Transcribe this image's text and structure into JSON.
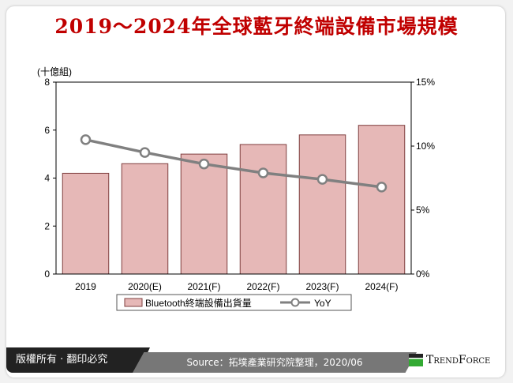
{
  "title": "2019～2024年全球藍牙終端設備市場規模",
  "footer": {
    "copyright": "版權所有 · 翻印必究",
    "source": "Source：拓墣產業研究院整理，2020/06",
    "brand": "TrendForce"
  },
  "colors": {
    "bar": "#e6b8b7",
    "bar_border": "#7f3f3f",
    "line": "#808080",
    "title": "#c00000"
  },
  "chart_data": {
    "type": "bar+line",
    "categories": [
      "2019",
      "2020(E)",
      "2021(F)",
      "2022(F)",
      "2023(F)",
      "2024(F)"
    ],
    "series": [
      {
        "name": "Bluetooth終端設備出貨量",
        "type": "bar",
        "axis": "left",
        "values": [
          4.2,
          4.6,
          5.0,
          5.4,
          5.8,
          6.2
        ]
      },
      {
        "name": "YoY",
        "type": "line",
        "axis": "right",
        "values": [
          10.5,
          9.5,
          8.6,
          7.9,
          7.4,
          6.8
        ]
      }
    ],
    "ylabel": "(十億組)",
    "ylim": [
      0,
      8
    ],
    "yticks": [
      "0",
      "2",
      "4",
      "6",
      "8"
    ],
    "y2lim": [
      0,
      15
    ],
    "y2ticks": [
      "0%",
      "5%",
      "10%",
      "15%"
    ],
    "legend": "bottom",
    "grid": false
  }
}
